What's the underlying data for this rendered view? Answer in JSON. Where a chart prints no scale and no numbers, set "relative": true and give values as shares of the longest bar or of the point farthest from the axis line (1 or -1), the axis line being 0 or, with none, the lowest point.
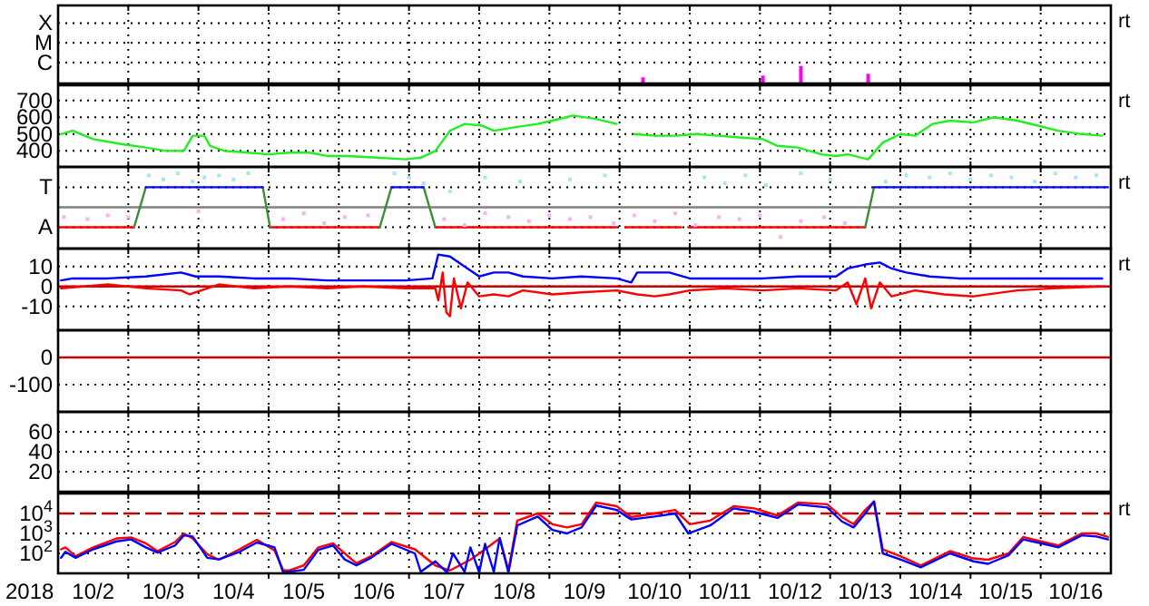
{
  "chart_data": [
    {
      "type": "bar",
      "relative": true,
      "tick_labels": false,
      "xlim": [
        "2018-10-02",
        "2018-10-17"
      ],
      "xticks": [
        {
          "value": "2018-10-03",
          "label": null
        },
        {
          "value": "2018-10-04",
          "label": null
        },
        {
          "value": "2018-10-05",
          "label": null
        },
        {
          "value": "2018-10-06",
          "label": null
        },
        {
          "value": "2018-10-07",
          "label": null
        },
        {
          "value": "2018-10-08",
          "label": null
        },
        {
          "value": "2018-10-09",
          "label": null
        },
        {
          "value": "2018-10-10",
          "label": null
        },
        {
          "value": "2018-10-11",
          "label": null
        },
        {
          "value": "2018-10-12",
          "label": null
        },
        {
          "value": "2018-10-13",
          "label": null
        },
        {
          "value": "2018-10-14",
          "label": null
        },
        {
          "value": "2018-10-15",
          "label": null
        },
        {
          "value": "2018-10-16",
          "label": null
        }
      ],
      "grid": true,
      "annotations": [
        "X",
        "M",
        "C",
        "rt"
      ],
      "series": [
        {
          "color": "#ff00ff",
          "x": [
            "2018-10-10T08:00",
            "2018-10-12T01:00",
            "2018-10-12T14:00",
            "2018-10-13T13:00"
          ],
          "values": [
            0.35,
            0.45,
            1,
            0.55
          ]
        }
      ]
    },
    {
      "type": "line",
      "xlim": [
        "2018-10-02",
        "2018-10-17"
      ],
      "xticks": [
        {
          "value": "2018-10-03",
          "label": null
        },
        {
          "value": "2018-10-04",
          "label": null
        },
        {
          "value": "2018-10-05",
          "label": null
        },
        {
          "value": "2018-10-06",
          "label": null
        },
        {
          "value": "2018-10-07",
          "label": null
        },
        {
          "value": "2018-10-08",
          "label": null
        },
        {
          "value": "2018-10-09",
          "label": null
        },
        {
          "value": "2018-10-10",
          "label": null
        },
        {
          "value": "2018-10-11",
          "label": null
        },
        {
          "value": "2018-10-12",
          "label": null
        },
        {
          "value": "2018-10-13",
          "label": null
        },
        {
          "value": "2018-10-14",
          "label": null
        },
        {
          "value": "2018-10-15",
          "label": null
        },
        {
          "value": "2018-10-16",
          "label": null
        }
      ],
      "ylim": [
        305,
        790
      ],
      "yticks": [
        400,
        500,
        600,
        700
      ],
      "grid": true,
      "tick_labels": "y",
      "annotations": [
        "rt"
      ],
      "series": [
        {
          "color": "#22ee22",
          "x": [
            "2018-10-02T01:00",
            "2018-10-02T05:00",
            "2018-10-02T12:00",
            "2018-10-02T22:00",
            "2018-10-03T06:00",
            "2018-10-03T13:00",
            "2018-10-03T19:00",
            "2018-10-03T22:00",
            "2018-10-04T02:00",
            "2018-10-04T04:00",
            "2018-10-04T09:00",
            "2018-10-04T17:00",
            "2018-10-05T00:00",
            "2018-10-05T07:00",
            "2018-10-05T14:00",
            "2018-10-05T20:00",
            "2018-10-06T03:00",
            "2018-10-06T13:00",
            "2018-10-06T23:00",
            "2018-10-07T04:00",
            "2018-10-07T09:00",
            "2018-10-07T14:00",
            "2018-10-07T19:00",
            "2018-10-08T01:00",
            "2018-10-08T05:00",
            "2018-10-08T12:00",
            "2018-10-08T20:00",
            "2018-10-09T01:00",
            "2018-10-09T08:00",
            "2018-10-09T16:00",
            "2018-10-09T23:00",
            "2018-10-10T02:00",
            "2018-10-10T05:00",
            "2018-10-10T12:00",
            "2018-10-10T19:00",
            "2018-10-11T02:00",
            "2018-10-11T10:00",
            "2018-10-11T17:00",
            "2018-10-12T01:00",
            "2018-10-12T06:00",
            "2018-10-12T13:00",
            "2018-10-12T21:00",
            "2018-10-13T02:00",
            "2018-10-13T06:00",
            "2018-10-13T13:00",
            "2018-10-13T18:00",
            "2018-10-14T00:00",
            "2018-10-14T05:00",
            "2018-10-14T11:00",
            "2018-10-14T17:00",
            "2018-10-15T01:00",
            "2018-10-15T08:00",
            "2018-10-15T16:00",
            "2018-10-15T23:00",
            "2018-10-16T06:00",
            "2018-10-16T14:00",
            "2018-10-16T21:00"
          ],
          "values": [
            500,
            520,
            470,
            440,
            420,
            400,
            400,
            490,
            490,
            430,
            400,
            390,
            380,
            390,
            390,
            370,
            370,
            360,
            350,
            360,
            400,
            520,
            560,
            550,
            520,
            540,
            560,
            580,
            610,
            590,
            560,
            null,
            500,
            490,
            490,
            500,
            490,
            480,
            470,
            430,
            420,
            380,
            370,
            380,
            350,
            450,
            500,
            490,
            560,
            580,
            570,
            600,
            580,
            550,
            520,
            500,
            490
          ]
        }
      ]
    },
    {
      "type": "line",
      "relative": true,
      "tick_labels": false,
      "xlim": [
        "2018-10-02",
        "2018-10-17"
      ],
      "xticks": [
        {
          "value": "2018-10-03",
          "label": null
        },
        {
          "value": "2018-10-04",
          "label": null
        },
        {
          "value": "2018-10-05",
          "label": null
        },
        {
          "value": "2018-10-06",
          "label": null
        },
        {
          "value": "2018-10-07",
          "label": null
        },
        {
          "value": "2018-10-08",
          "label": null
        },
        {
          "value": "2018-10-09",
          "label": null
        },
        {
          "value": "2018-10-10",
          "label": null
        },
        {
          "value": "2018-10-11",
          "label": null
        },
        {
          "value": "2018-10-12",
          "label": null
        },
        {
          "value": "2018-10-13",
          "label": null
        },
        {
          "value": "2018-10-14",
          "label": null
        },
        {
          "value": "2018-10-15",
          "label": null
        },
        {
          "value": "2018-10-16",
          "label": null
        }
      ],
      "grid": true,
      "annotations": [
        "T",
        "A",
        "rt"
      ],
      "ref_lines": [
        {
          "axis": "y",
          "value": 0,
          "color": "#808080"
        }
      ],
      "series": [
        {
          "type": "scatter",
          "color": "#a8e4f4",
          "x": [
            "2018-10-03T07:00",
            "2018-10-03T12:00",
            "2018-10-03T17:00",
            "2018-10-03T22:00",
            "2018-10-04T02:00",
            "2018-10-04T07:00",
            "2018-10-04T12:00",
            "2018-10-04T17:00",
            "2018-10-06T19:00",
            "2018-10-07T00:00",
            "2018-10-07T05:00",
            "2018-10-07T14:00",
            "2018-10-08T02:00",
            "2018-10-08T14:00",
            "2018-10-09T07:00",
            "2018-10-09T19:00",
            "2018-10-11T05:00",
            "2018-10-11T12:00",
            "2018-10-11T19:00",
            "2018-10-12T02:00",
            "2018-10-12T14:00",
            "2018-10-13T00:00",
            "2018-10-13T19:00",
            "2018-10-14T02:00",
            "2018-10-14T10:00",
            "2018-10-14T17:00",
            "2018-10-15T00:00",
            "2018-10-15T07:00",
            "2018-10-15T14:00",
            "2018-10-15T22:00",
            "2018-10-16T05:00",
            "2018-10-16T12:00",
            "2018-10-16T19:00"
          ],
          "values": [
            0.94,
            0.82,
            1,
            0.76,
            0.88,
            0.94,
            0.82,
            1,
            1,
            0.88,
            0.71,
            0.47,
            0.88,
            0.76,
            0.82,
            0.94,
            0.88,
            0.71,
            0.94,
            0.65,
            1,
            0.82,
            0.76,
            0.94,
            0.88,
            1,
            0.82,
            0.94,
            0.88,
            0.76,
            1,
            0.88,
            0.94
          ]
        },
        {
          "type": "scatter",
          "color": "#f4b4f4",
          "x": [
            "2018-10-02T02:00",
            "2018-10-02T10:00",
            "2018-10-02T17:00",
            "2018-10-03T00:00",
            "2018-10-04T00:00",
            "2018-10-05T05:00",
            "2018-10-05T12:00",
            "2018-10-05T19:00",
            "2018-10-06T02:00",
            "2018-10-06T10:00",
            "2018-10-07T12:00",
            "2018-10-07T19:00",
            "2018-10-08T02:00",
            "2018-10-08T10:00",
            "2018-10-08T17:00",
            "2018-10-09T00:00",
            "2018-10-09T07:00",
            "2018-10-09T14:00",
            "2018-10-09T22:00",
            "2018-10-10T05:00",
            "2018-10-10T12:00",
            "2018-10-10T19:00",
            "2018-10-11T02:00",
            "2018-10-11T10:00",
            "2018-10-11T17:00",
            "2018-10-12T00:00",
            "2018-10-12T07:00",
            "2018-10-12T14:00",
            "2018-10-12T22:00",
            "2018-10-13T05:00"
          ],
          "values": [
            -0.29,
            -0.35,
            -0.24,
            -0.29,
            -0.12,
            -0.35,
            -0.18,
            -0.47,
            -0.29,
            -0.24,
            -0.35,
            -0.53,
            -0.18,
            -0.29,
            -0.41,
            -0.24,
            -0.35,
            -0.29,
            -0.47,
            -0.24,
            -0.41,
            -0.18,
            -0.53,
            -0.29,
            -0.35,
            -0.24,
            -0.88,
            -0.41,
            -0.29,
            -0.47
          ]
        },
        {
          "color": "#ff0000",
          "x": [
            "2018-10-02T00:00",
            "2018-10-03T02:00",
            "2018-10-03T03:00",
            "2018-10-05T00:30",
            "2018-10-06T14:00",
            "2018-10-06T15:00",
            "2018-10-07T09:00",
            "2018-10-09T23:00",
            "2018-10-10T00:00",
            "2018-10-10T02:00",
            "2018-10-10T21:00",
            "2018-10-10T22:00",
            "2018-10-10T23:30",
            "2018-10-13T12:00"
          ],
          "values": [
            -0.59,
            -0.59,
            null,
            -0.59,
            -0.59,
            null,
            -0.59,
            -0.59,
            null,
            -0.59,
            -0.59,
            null,
            -0.59,
            -0.59
          ]
        },
        {
          "color": "#3c8c3c",
          "x": [
            "2018-10-03T02:00",
            "2018-10-03T06:00",
            "2018-10-03T12:00",
            "2018-10-04T22:00",
            "2018-10-05T00:30",
            "2018-10-05T12:00",
            "2018-10-06T14:00",
            "2018-10-06T18:00",
            "2018-10-07T00:00",
            "2018-10-07T05:00",
            "2018-10-07T09:00",
            "2018-10-10T00:00",
            "2018-10-13T12:00",
            "2018-10-13T15:00"
          ],
          "values": [
            -0.59,
            0.59,
            null,
            0.59,
            -0.59,
            null,
            -0.59,
            0.59,
            null,
            0.59,
            -0.59,
            null,
            -0.59,
            0.59
          ]
        },
        {
          "color": "#0000ff",
          "x": [
            "2018-10-03T06:00",
            "2018-10-04T22:00",
            "2018-10-05T00:00",
            "2018-10-06T18:00",
            "2018-10-07T05:00",
            "2018-10-07T07:00",
            "2018-10-13T15:00",
            "2018-10-16T23:00"
          ],
          "values": [
            0.59,
            0.59,
            null,
            0.59,
            0.59,
            null,
            0.59,
            0.59
          ]
        }
      ]
    },
    {
      "type": "line",
      "xlim": [
        "2018-10-02",
        "2018-10-17"
      ],
      "xticks": [
        {
          "value": "2018-10-03",
          "label": null
        },
        {
          "value": "2018-10-04",
          "label": null
        },
        {
          "value": "2018-10-05",
          "label": null
        },
        {
          "value": "2018-10-06",
          "label": null
        },
        {
          "value": "2018-10-07",
          "label": null
        },
        {
          "value": "2018-10-08",
          "label": null
        },
        {
          "value": "2018-10-09",
          "label": null
        },
        {
          "value": "2018-10-10",
          "label": null
        },
        {
          "value": "2018-10-11",
          "label": null
        },
        {
          "value": "2018-10-12",
          "label": null
        },
        {
          "value": "2018-10-13",
          "label": null
        },
        {
          "value": "2018-10-14",
          "label": null
        },
        {
          "value": "2018-10-15",
          "label": null
        },
        {
          "value": "2018-10-16",
          "label": null
        }
      ],
      "ylim": [
        -22,
        19
      ],
      "yticks": [
        -10,
        0,
        10
      ],
      "grid": true,
      "tick_labels": "y",
      "annotations": [
        "rt"
      ],
      "ref_lines": [
        {
          "axis": "y",
          "value": 0,
          "color": "#cc0000"
        }
      ],
      "series": [
        {
          "color": "#0000ff",
          "x": [
            "2018-10-02T01:00",
            "2018-10-02T05:00",
            "2018-10-02T17:00",
            "2018-10-03T06:00",
            "2018-10-03T18:00",
            "2018-10-03T23:00",
            "2018-10-04T07:00",
            "2018-10-04T19:00",
            "2018-10-05T07:00",
            "2018-10-05T20:00",
            "2018-10-06T08:00",
            "2018-10-06T23:00",
            "2018-10-07T08:00",
            "2018-10-07T10:00",
            "2018-10-07T14:00",
            "2018-10-07T19:00",
            "2018-10-08T00:00",
            "2018-10-08T05:00",
            "2018-10-08T10:00",
            "2018-10-08T15:00",
            "2018-10-09T01:00",
            "2018-10-09T11:00",
            "2018-10-09T23:00",
            "2018-10-10T04:00",
            "2018-10-10T06:00",
            "2018-10-10T12:00",
            "2018-10-10T17:00",
            "2018-10-11T00:00",
            "2018-10-11T12:00",
            "2018-10-12T01:00",
            "2018-10-12T13:00",
            "2018-10-13T02:00",
            "2018-10-13T06:00",
            "2018-10-13T12:00",
            "2018-10-13T17:00",
            "2018-10-13T21:00",
            "2018-10-14T02:00",
            "2018-10-14T10:00",
            "2018-10-14T20:00",
            "2018-10-15T06:00",
            "2018-10-15T16:00",
            "2018-10-16T04:00",
            "2018-10-16T16:00",
            "2018-10-16T21:00"
          ],
          "values": [
            3,
            4,
            4,
            5,
            7,
            5,
            5,
            4,
            4,
            3,
            3,
            3,
            4,
            16,
            15,
            10,
            5,
            7,
            7,
            5,
            4,
            5,
            4,
            2,
            7,
            7,
            7,
            4,
            4,
            4,
            5,
            5,
            9,
            11,
            12,
            9,
            7,
            5,
            4,
            4,
            4,
            4,
            4,
            4
          ]
        },
        {
          "color": "#ff0000",
          "x": [
            "2018-10-02T01:00",
            "2018-10-02T17:00",
            "2018-10-03T06:00",
            "2018-10-03T18:00",
            "2018-10-03T21:00",
            "2018-10-04T07:00",
            "2018-10-04T19:00",
            "2018-10-05T07:00",
            "2018-10-05T20:00",
            "2018-10-06T08:00",
            "2018-10-06T23:00",
            "2018-10-07T09:00",
            "2018-10-07T10:00",
            "2018-10-07T11:30",
            "2018-10-07T12:45",
            "2018-10-07T14:00",
            "2018-10-07T15:20",
            "2018-10-07T17:45",
            "2018-10-07T20:00",
            "2018-10-08T00:00",
            "2018-10-08T05:00",
            "2018-10-08T10:00",
            "2018-10-08T15:00",
            "2018-10-09T01:00",
            "2018-10-09T11:00",
            "2018-10-09T23:00",
            "2018-10-10T06:00",
            "2018-10-10T12:00",
            "2018-10-10T17:00",
            "2018-10-11T00:00",
            "2018-10-11T12:00",
            "2018-10-12T01:00",
            "2018-10-12T13:00",
            "2018-10-13T02:00",
            "2018-10-13T06:00",
            "2018-10-13T09:00",
            "2018-10-13T12:00",
            "2018-10-13T14:00",
            "2018-10-13T17:00",
            "2018-10-13T21:00",
            "2018-10-14T05:00",
            "2018-10-14T15:00",
            "2018-10-15T01:00",
            "2018-10-15T16:00",
            "2018-10-16T04:00",
            "2018-10-16T21:00"
          ],
          "values": [
            -1,
            1,
            -1,
            -2,
            -4,
            1,
            -1,
            0,
            -1,
            0,
            -1,
            -1,
            -7,
            7,
            -13,
            -15,
            4,
            -11,
            2,
            -5,
            -4,
            -5,
            -2,
            -4,
            -3,
            -2,
            -4,
            -5,
            -4,
            -2,
            -1,
            -2,
            -1,
            -2,
            2,
            -9,
            4,
            -11,
            2,
            -5,
            -2,
            -4,
            -5,
            -2,
            -1,
            0
          ]
        }
      ]
    },
    {
      "type": "line",
      "xlim": [
        "2018-10-02",
        "2018-10-17"
      ],
      "xticks": [
        {
          "value": "2018-10-03",
          "label": null
        },
        {
          "value": "2018-10-04",
          "label": null
        },
        {
          "value": "2018-10-05",
          "label": null
        },
        {
          "value": "2018-10-06",
          "label": null
        },
        {
          "value": "2018-10-07",
          "label": null
        },
        {
          "value": "2018-10-08",
          "label": null
        },
        {
          "value": "2018-10-09",
          "label": null
        },
        {
          "value": "2018-10-10",
          "label": null
        },
        {
          "value": "2018-10-11",
          "label": null
        },
        {
          "value": "2018-10-12",
          "label": null
        },
        {
          "value": "2018-10-13",
          "label": null
        },
        {
          "value": "2018-10-14",
          "label": null
        },
        {
          "value": "2018-10-15",
          "label": null
        },
        {
          "value": "2018-10-16",
          "label": null
        }
      ],
      "ylim": [
        -200,
        100
      ],
      "yticks": [
        -100,
        0
      ],
      "grid": true,
      "tick_labels": "y",
      "ref_lines": [
        {
          "axis": "y",
          "value": 0,
          "color": "#cc0000"
        }
      ]
    },
    {
      "type": "line",
      "xlim": [
        "2018-10-02",
        "2018-10-17"
      ],
      "xticks": [
        {
          "value": "2018-10-03",
          "label": null
        },
        {
          "value": "2018-10-04",
          "label": null
        },
        {
          "value": "2018-10-05",
          "label": null
        },
        {
          "value": "2018-10-06",
          "label": null
        },
        {
          "value": "2018-10-07",
          "label": null
        },
        {
          "value": "2018-10-08",
          "label": null
        },
        {
          "value": "2018-10-09",
          "label": null
        },
        {
          "value": "2018-10-10",
          "label": null
        },
        {
          "value": "2018-10-11",
          "label": null
        },
        {
          "value": "2018-10-12",
          "label": null
        },
        {
          "value": "2018-10-13",
          "label": null
        },
        {
          "value": "2018-10-14",
          "label": null
        },
        {
          "value": "2018-10-15",
          "label": null
        },
        {
          "value": "2018-10-16",
          "label": null
        }
      ],
      "ylim": [
        0,
        80
      ],
      "yticks": [
        20,
        40,
        60
      ],
      "grid": true,
      "tick_labels": "y"
    },
    {
      "type": "line",
      "xlim": [
        "2018-10-02",
        "2018-10-17"
      ],
      "xticks": [
        {
          "value": "2018-10-03",
          "label": null
        },
        {
          "value": "2018-10-04",
          "label": null
        },
        {
          "value": "2018-10-05",
          "label": null
        },
        {
          "value": "2018-10-06",
          "label": null
        },
        {
          "value": "2018-10-07",
          "label": null
        },
        {
          "value": "2018-10-08",
          "label": null
        },
        {
          "value": "2018-10-09",
          "label": null
        },
        {
          "value": "2018-10-10",
          "label": null
        },
        {
          "value": "2018-10-11",
          "label": null
        },
        {
          "value": "2018-10-12",
          "label": null
        },
        {
          "value": "2018-10-13",
          "label": null
        },
        {
          "value": "2018-10-14",
          "label": null
        },
        {
          "value": "2018-10-15",
          "label": null
        },
        {
          "value": "2018-10-16",
          "label": null
        },
        {
          "value": "2018-10-02T12:00",
          "label": "10/2"
        },
        {
          "value": "2018-10-03T12:00",
          "label": "10/3"
        },
        {
          "value": "2018-10-04T12:00",
          "label": "10/4"
        },
        {
          "value": "2018-10-05T12:00",
          "label": "10/5"
        },
        {
          "value": "2018-10-06T12:00",
          "label": "10/6"
        },
        {
          "value": "2018-10-07T12:00",
          "label": "10/7"
        },
        {
          "value": "2018-10-08T12:00",
          "label": "10/8"
        },
        {
          "value": "2018-10-09T12:00",
          "label": "10/9"
        },
        {
          "value": "2018-10-10T12:00",
          "label": "10/10"
        },
        {
          "value": "2018-10-11T12:00",
          "label": "10/11"
        },
        {
          "value": "2018-10-12T12:00",
          "label": "10/12"
        },
        {
          "value": "2018-10-13T12:00",
          "label": "10/13"
        },
        {
          "value": "2018-10-14T12:00",
          "label": "10/14"
        },
        {
          "value": "2018-10-15T12:00",
          "label": "10/15"
        },
        {
          "value": "2018-10-16T12:00",
          "label": "10/16"
        }
      ],
      "xlabel": "2018",
      "ylim": [
        10,
        100000
      ],
      "log": true,
      "yticks": [
        {
          "value": 100,
          "label": "10$^{2}$"
        },
        {
          "value": 1000,
          "label": "10$^{3}$"
        },
        {
          "value": 10000,
          "label": "10$^{4}$"
        }
      ],
      "grid": true,
      "annotations": [
        "rt"
      ],
      "ref_lines": [
        {
          "axis": "y",
          "value": 10000,
          "color": "#cc0000",
          "line_style": "dashed"
        }
      ],
      "series": [
        {
          "color": "#ff0000",
          "x": [
            "2018-10-02T01:00",
            "2018-10-02T02:30",
            "2018-10-02T06:00",
            "2018-10-02T12:00",
            "2018-10-02T20:00",
            "2018-10-03T01:00",
            "2018-10-03T06:00",
            "2018-10-03T10:00",
            "2018-10-03T16:00",
            "2018-10-03T19:00",
            "2018-10-03T22:00",
            "2018-10-04T03:00",
            "2018-10-04T07:00",
            "2018-10-04T14:00",
            "2018-10-04T20:00",
            "2018-10-05T02:00",
            "2018-10-05T05:00",
            "2018-10-05T07:00",
            "2018-10-05T12:00",
            "2018-10-05T17:00",
            "2018-10-05T22:00",
            "2018-10-06T02:00",
            "2018-10-06T06:00",
            "2018-10-06T11:00",
            "2018-10-06T18:00",
            "2018-10-07T02:00",
            "2018-10-07T09:00",
            "2018-10-07T14:00",
            "2018-10-07T21:00",
            "2018-10-08T02:00",
            "2018-10-08T07:00",
            "2018-10-08T10:00",
            "2018-10-08T13:00",
            "2018-10-08T20:00",
            "2018-10-09T01:00",
            "2018-10-09T06:00",
            "2018-10-09T11:00",
            "2018-10-09T16:00",
            "2018-10-09T23:00",
            "2018-10-10T04:00",
            "2018-10-10T12:00",
            "2018-10-10T19:00",
            "2018-10-11T00:00",
            "2018-10-11T07:00",
            "2018-10-11T15:00",
            "2018-10-11T22:00",
            "2018-10-12T06:00",
            "2018-10-12T13:00",
            "2018-10-12T23:00",
            "2018-10-13T04:00",
            "2018-10-13T08:00",
            "2018-10-13T12:00",
            "2018-10-13T15:00",
            "2018-10-13T18:00",
            "2018-10-14T00:00",
            "2018-10-14T07:00",
            "2018-10-14T17:00",
            "2018-10-15T01:00",
            "2018-10-15T06:00",
            "2018-10-15T13:00",
            "2018-10-15T18:00",
            "2018-10-16T01:00",
            "2018-10-16T06:00",
            "2018-10-16T14:00",
            "2018-10-16T19:00",
            "2018-10-16T23:00"
          ],
          "values": [
            160,
            200,
            72,
            200,
            560,
            630,
            320,
            130,
            370,
            1000,
            560,
            91,
            48,
            160,
            480,
            140,
            14,
            14,
            25,
            200,
            320,
            100,
            32,
            72,
            370,
            160,
            25,
            14,
            48,
            160,
            560,
            14,
            4400,
            10000,
            2900,
            2000,
            2900,
            35000,
            23000,
            6600,
            10000,
            15000,
            2900,
            4400,
            23000,
            18000,
            7900,
            35000,
            29000,
            6600,
            2900,
            15000,
            40000,
            160,
            72,
            25,
            130,
            56,
            48,
            100,
            660,
            370,
            250,
            1000,
            1000,
            660
          ]
        },
        {
          "color": "#0000ff",
          "x": [
            "2018-10-02T01:00",
            "2018-10-02T02:30",
            "2018-10-02T06:00",
            "2018-10-02T12:00",
            "2018-10-02T20:00",
            "2018-10-03T01:00",
            "2018-10-03T06:00",
            "2018-10-03T10:00",
            "2018-10-03T16:00",
            "2018-10-03T19:00",
            "2018-10-03T22:00",
            "2018-10-04T03:00",
            "2018-10-04T07:00",
            "2018-10-04T14:00",
            "2018-10-04T20:00",
            "2018-10-05T02:00",
            "2018-10-05T05:00",
            "2018-10-05T07:00",
            "2018-10-05T12:00",
            "2018-10-05T17:00",
            "2018-10-05T22:00",
            "2018-10-06T02:00",
            "2018-10-06T06:00",
            "2018-10-06T11:00",
            "2018-10-06T18:00",
            "2018-10-07T02:00",
            "2018-10-07T04:00",
            "2018-10-07T09:00",
            "2018-10-07T13:00",
            "2018-10-07T15:00",
            "2018-10-07T19:00",
            "2018-10-07T21:00",
            "2018-10-08T00:00",
            "2018-10-08T02:00",
            "2018-10-08T05:00",
            "2018-10-08T07:00",
            "2018-10-08T10:00",
            "2018-10-08T13:00",
            "2018-10-08T20:00",
            "2018-10-09T01:00",
            "2018-10-09T06:00",
            "2018-10-09T11:00",
            "2018-10-09T16:00",
            "2018-10-09T23:00",
            "2018-10-10T04:00",
            "2018-10-10T12:00",
            "2018-10-10T19:00",
            "2018-10-10T23:30",
            "2018-10-11T07:00",
            "2018-10-11T15:00",
            "2018-10-11T22:00",
            "2018-10-12T06:00",
            "2018-10-12T13:00",
            "2018-10-12T23:00",
            "2018-10-13T04:00",
            "2018-10-13T08:00",
            "2018-10-13T12:00",
            "2018-10-13T15:00",
            "2018-10-13T18:00",
            "2018-10-14T00:00",
            "2018-10-14T07:00",
            "2018-10-14T17:00",
            "2018-10-15T01:00",
            "2018-10-15T06:00",
            "2018-10-15T13:00",
            "2018-10-15T18:00",
            "2018-10-16T01:00",
            "2018-10-16T06:00",
            "2018-10-16T14:00",
            "2018-10-16T19:00",
            "2018-10-16T23:00"
          ],
          "values": [
            60,
            120,
            60,
            160,
            400,
            500,
            200,
            110,
            250,
            800,
            700,
            60,
            50,
            120,
            350,
            200,
            11,
            12,
            15,
            150,
            250,
            50,
            25,
            60,
            300,
            100,
            12,
            40,
            11,
            100,
            12,
            200,
            11,
            300,
            12,
            600,
            11,
            2500,
            7000,
            1500,
            1000,
            2000,
            25000,
            15000,
            5000,
            7000,
            10000,
            1000,
            2500,
            18000,
            12000,
            6000,
            28000,
            20000,
            4000,
            2000,
            10000,
            40000,
            100,
            50,
            20,
            100,
            40,
            30,
            80,
            500,
            300,
            200,
            800,
            700,
            500
          ]
        }
      ]
    }
  ]
}
